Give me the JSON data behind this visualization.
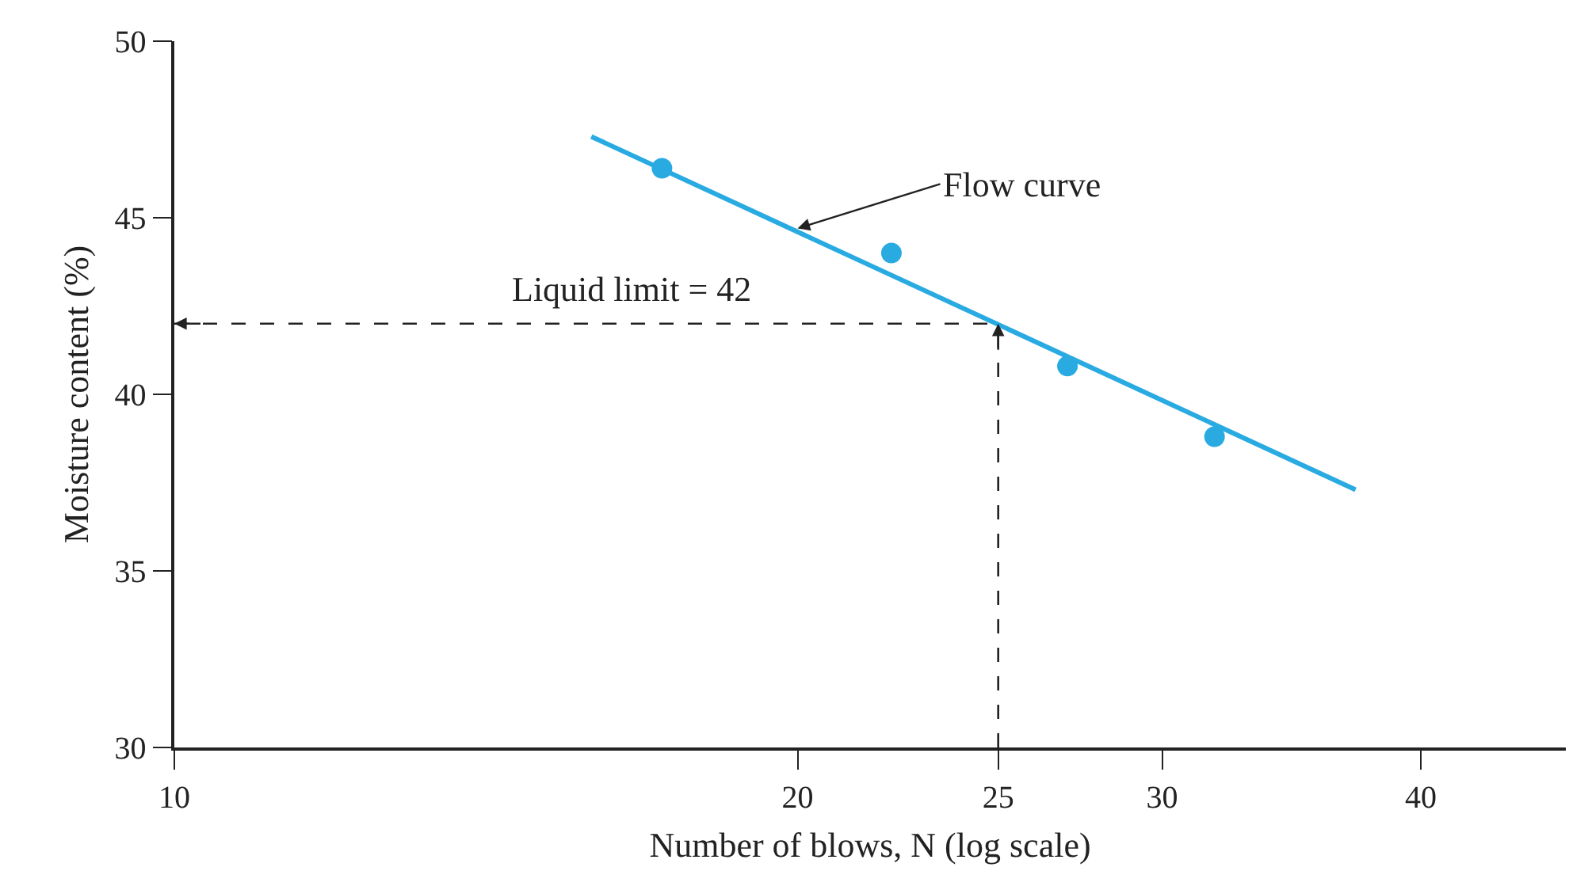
{
  "chart_data": {
    "type": "scatter",
    "xlabel": "Number of blows, N (log scale)",
    "ylabel": "Moisture content (%)",
    "log": "x",
    "xlim": [
      10,
      47
    ],
    "xticks": [
      10,
      20,
      25,
      30,
      40
    ],
    "ylim": [
      30,
      50
    ],
    "yticks": [
      30,
      35,
      40,
      45,
      50
    ],
    "grid": false,
    "marker": "circle",
    "series": [
      {
        "color": "#29abe2",
        "x": [
          17.2,
          22.2,
          27.0,
          31.8
        ],
        "values": [
          46.4,
          44.0,
          40.8,
          38.8
        ]
      },
      {
        "type": "line",
        "color": "#29abe2",
        "line_style": "solid",
        "marker": "none",
        "x": [
          15.9,
          37.2
        ],
        "values": [
          47.3,
          37.3
        ]
      }
    ],
    "ref_lines": [
      {
        "axis": "y",
        "value": 42,
        "label": "Liquid limit = 42",
        "color": "#222222",
        "line_style": "dashed"
      },
      {
        "axis": "x",
        "value": 25,
        "color": "#222222",
        "line_style": "dashed"
      }
    ],
    "annotations": [
      {
        "text": "Flow curve",
        "x": 20,
        "y": 44.7
      }
    ]
  }
}
